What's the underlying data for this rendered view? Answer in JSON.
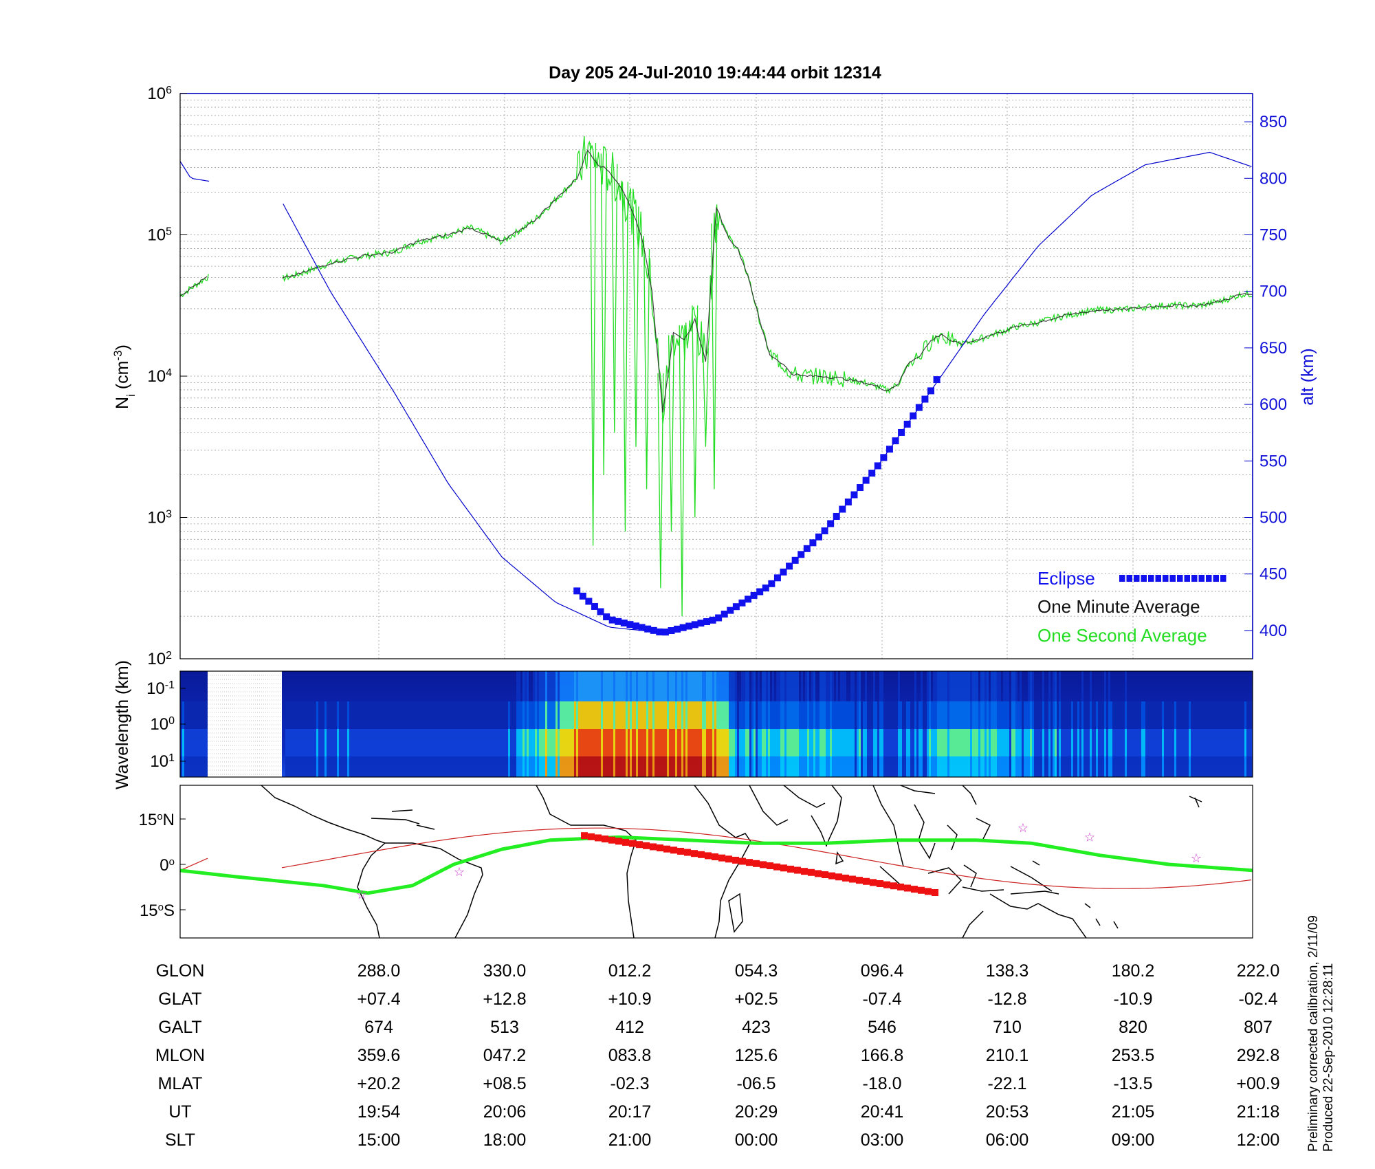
{
  "title": "Day 205  24-Jul-2010 19:44:44   orbit 12314",
  "colors": {
    "green": "#22dd22",
    "dark": "#111111",
    "blue": "#0000cc",
    "eclipse": "#1111ee",
    "track_red": "#ee1111",
    "star": "#cc33cc"
  },
  "chart_data": [
    {
      "type": "line",
      "panel": "ion density and altitude",
      "ylabel_left": "N",
      "ylabel_left_sub": "i",
      "ylabel_left_unit": " (cm",
      "ylabel_left_exp": "-3",
      "ylabel_left_close": ")",
      "ylabel_right": "alt (km)",
      "ylim_left_log10": [
        2,
        6
      ],
      "yticks_left": [
        {
          "base": "10",
          "exp": "2",
          "v": 2
        },
        {
          "base": "10",
          "exp": "3",
          "v": 3
        },
        {
          "base": "10",
          "exp": "4",
          "v": 4
        },
        {
          "base": "10",
          "exp": "5",
          "v": 5
        },
        {
          "base": "10",
          "exp": "6",
          "v": 6
        }
      ],
      "ylim_right": [
        375,
        875
      ],
      "yticks_right": [
        "400",
        "450",
        "500",
        "550",
        "600",
        "650",
        "700",
        "750",
        "800",
        "850"
      ],
      "x_range_ut": [
        "19:44:44",
        "21:18"
      ],
      "grid": true,
      "legend_position": "bottom-right",
      "legend": {
        "eclipse": "Eclipse",
        "one_minute": "One Minute Average",
        "one_second": "One Second Average"
      },
      "series": [
        {
          "name": "One Minute Average",
          "points_log10": [
            [
              0,
              4.57
            ],
            [
              2.5,
              4.7
            ],
            [
              9,
              4.68
            ],
            [
              11,
              4.72
            ],
            [
              14,
              4.8
            ],
            [
              17,
              4.85
            ],
            [
              20,
              4.88
            ],
            [
              22,
              4.95
            ],
            [
              25,
              5.0
            ],
            [
              27,
              5.05
            ],
            [
              28,
              5.02
            ],
            [
              30,
              4.95
            ],
            [
              31,
              5.0
            ],
            [
              33,
              5.1
            ],
            [
              35,
              5.25
            ],
            [
              37,
              5.4
            ],
            [
              38,
              5.6
            ],
            [
              39,
              5.5
            ],
            [
              40,
              5.45
            ],
            [
              41,
              5.35
            ],
            [
              42,
              5.2
            ],
            [
              43,
              5.0
            ],
            [
              44,
              4.6
            ],
            [
              45,
              3.75
            ],
            [
              46,
              4.3
            ],
            [
              47,
              4.25
            ],
            [
              48,
              4.4
            ],
            [
              49,
              4.1
            ],
            [
              50,
              5.2
            ],
            [
              51,
              5.0
            ],
            [
              52,
              4.9
            ],
            [
              53,
              4.7
            ],
            [
              54,
              4.4
            ],
            [
              55,
              4.15
            ],
            [
              56,
              4.1
            ],
            [
              57,
              4.02
            ],
            [
              58,
              4.0
            ],
            [
              60,
              4.0
            ],
            [
              62,
              3.98
            ],
            [
              64,
              3.95
            ],
            [
              66,
              3.9
            ],
            [
              67,
              3.95
            ],
            [
              68,
              4.1
            ],
            [
              69,
              4.15
            ],
            [
              70,
              4.25
            ],
            [
              71,
              4.3
            ],
            [
              72,
              4.24
            ],
            [
              73,
              4.23
            ],
            [
              74,
              4.25
            ],
            [
              76,
              4.3
            ],
            [
              78,
              4.35
            ],
            [
              80,
              4.38
            ],
            [
              82,
              4.42
            ],
            [
              84,
              4.45
            ],
            [
              86,
              4.47
            ],
            [
              88,
              4.47
            ],
            [
              90,
              4.49
            ],
            [
              92,
              4.5
            ],
            [
              95,
              4.5
            ],
            [
              97,
              4.53
            ],
            [
              99,
              4.58
            ]
          ],
          "gap_x": [
            2.7,
            9.5
          ]
        },
        {
          "name": "One Second Average",
          "spikes": [
            [
              38.5,
              2.8
            ],
            [
              39.5,
              3.3
            ],
            [
              40.5,
              3.6
            ],
            [
              41.5,
              2.9
            ],
            [
              42.5,
              3.5
            ],
            [
              43.5,
              3.2
            ],
            [
              44.8,
              2.5
            ],
            [
              45.8,
              2.9
            ],
            [
              46.8,
              2.3
            ],
            [
              48,
              3.0
            ],
            [
              49,
              3.5
            ],
            [
              49.8,
              3.2
            ]
          ]
        },
        {
          "name": "alt (km)",
          "points": [
            [
              0,
              815
            ],
            [
              1,
              800
            ],
            [
              9,
              788
            ],
            [
              14,
              700
            ],
            [
              20,
              610
            ],
            [
              25,
              530
            ],
            [
              30,
              465
            ],
            [
              35,
              425
            ],
            [
              40,
              403
            ],
            [
              45,
              398
            ],
            [
              50,
              410
            ],
            [
              55,
              440
            ],
            [
              60,
              487
            ],
            [
              65,
              545
            ],
            [
              70,
              612
            ],
            [
              75,
              680
            ],
            [
              80,
              740
            ],
            [
              85,
              785
            ],
            [
              90,
              812
            ],
            [
              96,
              823
            ],
            [
              100,
              810
            ]
          ],
          "gap_x": [
            2.7,
            9.5
          ]
        },
        {
          "name": "Eclipse",
          "points": [
            [
              37,
              435
            ],
            [
              40,
              410
            ],
            [
              45,
              398
            ],
            [
              50,
              410
            ],
            [
              55,
              440
            ],
            [
              60,
              487
            ],
            [
              65,
              545
            ],
            [
              70,
              612
            ],
            [
              71,
              630
            ]
          ]
        }
      ]
    },
    {
      "type": "heatmap",
      "panel": "irregularity spectrum",
      "ylabel": "Wavelength (km)",
      "yticks": [
        {
          "base": "10",
          "exp": "-1"
        },
        {
          "base": "10",
          "exp": "0"
        },
        {
          "base": "10",
          "exp": "1"
        }
      ],
      "data_gap_x": [
        2.7,
        9.5
      ],
      "intensity_profile": [
        [
          0,
          0.15
        ],
        [
          30,
          0.12
        ],
        [
          38,
          0.95
        ],
        [
          45,
          0.9
        ],
        [
          50,
          0.9
        ],
        [
          52,
          0.3
        ],
        [
          60,
          0.4
        ],
        [
          66,
          0.2
        ],
        [
          72,
          0.45
        ],
        [
          78,
          0.35
        ],
        [
          85,
          0.2
        ],
        [
          100,
          0.15
        ]
      ]
    },
    {
      "type": "map",
      "panel": "ground track",
      "yticks": [
        {
          "deg": "15",
          "hemi": "N"
        },
        {
          "deg": "0",
          "hemi": ""
        },
        {
          "deg": "15",
          "hemi": "S"
        }
      ]
    }
  ],
  "table": {
    "rows": [
      {
        "label": "GLON",
        "values": [
          "288.0",
          "330.0",
          "012.2",
          "054.3",
          "096.4",
          "138.3",
          "180.2",
          "222.0"
        ]
      },
      {
        "label": "GLAT",
        "values": [
          "+07.4",
          "+12.8",
          "+10.9",
          "+02.5",
          "-07.4",
          "-12.8",
          "-10.9",
          "-02.4"
        ]
      },
      {
        "label": "GALT",
        "values": [
          "674",
          "513",
          "412",
          "423",
          "546",
          "710",
          "820",
          "807"
        ]
      },
      {
        "label": "MLON",
        "values": [
          "359.6",
          "047.2",
          "083.8",
          "125.6",
          "166.8",
          "210.1",
          "253.5",
          "292.8"
        ]
      },
      {
        "label": "MLAT",
        "values": [
          "+20.2",
          "+08.5",
          "-02.3",
          "-06.5",
          "-18.0",
          "-22.1",
          "-13.5",
          "+00.9"
        ]
      },
      {
        "label": "UT",
        "values": [
          "19:54",
          "20:06",
          "20:17",
          "20:29",
          "20:41",
          "20:53",
          "21:05",
          "21:18"
        ]
      },
      {
        "label": "SLT",
        "values": [
          "15:00",
          "18:00",
          "21:00",
          "00:00",
          "03:00",
          "06:00",
          "09:00",
          "12:00"
        ]
      }
    ]
  },
  "footer": {
    "line1": "Preliminary corrected calibration, 2/11/09",
    "line2": "Produced 22-Sep-2010 12:28:11"
  }
}
